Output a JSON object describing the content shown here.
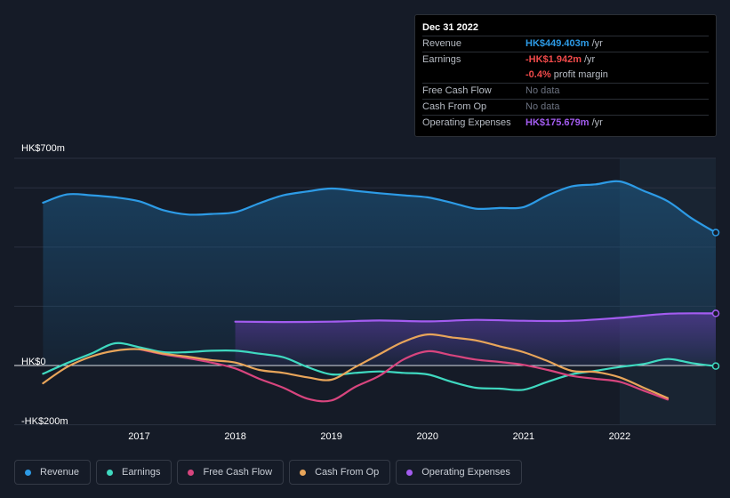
{
  "tooltip": {
    "date": "Dec 31 2022",
    "rows": [
      {
        "label": "Revenue",
        "value": "HK$449.403m",
        "suffix": "/yr"
      },
      {
        "label": "Earnings",
        "value": "-HK$1.942m",
        "suffix": "/yr"
      },
      {
        "label": "",
        "value": "-0.4%",
        "suffix": "profit margin"
      },
      {
        "label": "Free Cash Flow",
        "value": "No data",
        "suffix": ""
      },
      {
        "label": "Cash From Op",
        "value": "No data",
        "suffix": ""
      },
      {
        "label": "Operating Expenses",
        "value": "HK$175.679m",
        "suffix": "/yr"
      }
    ]
  },
  "legend": [
    {
      "label": "Revenue",
      "color": "#2d9be6"
    },
    {
      "label": "Earnings",
      "color": "#3fd9c0"
    },
    {
      "label": "Free Cash Flow",
      "color": "#d8457e"
    },
    {
      "label": "Cash From Op",
      "color": "#e8a55a"
    },
    {
      "label": "Operating Expenses",
      "color": "#a35cf0"
    }
  ],
  "chart_data": {
    "type": "line",
    "y_labels": [
      "HK$700m",
      "HK$0",
      "-HK$200m"
    ],
    "x_ticks": [
      {
        "label": "2017",
        "x": 2017.0
      },
      {
        "label": "2018",
        "x": 2018.0
      },
      {
        "label": "2019",
        "x": 2019.0
      },
      {
        "label": "2020",
        "x": 2020.0
      },
      {
        "label": "2021",
        "x": 2021.0
      },
      {
        "label": "2022",
        "x": 2022.0
      }
    ],
    "xlim": [
      2015.7,
      2023.0
    ],
    "ylim": [
      -200,
      700
    ],
    "forecast_start": 2022.0,
    "series": [
      {
        "name": "Revenue",
        "color": "#2d9be6",
        "fill": true,
        "x": [
          2016.0,
          2016.25,
          2016.5,
          2016.75,
          2017.0,
          2017.25,
          2017.5,
          2017.75,
          2018.0,
          2018.25,
          2018.5,
          2018.75,
          2019.0,
          2019.25,
          2019.5,
          2019.75,
          2020.0,
          2020.25,
          2020.5,
          2020.75,
          2021.0,
          2021.25,
          2021.5,
          2021.75,
          2022.0,
          2022.25,
          2022.5,
          2022.75,
          2023.0
        ],
        "values": [
          550,
          578,
          575,
          568,
          555,
          525,
          510,
          512,
          518,
          548,
          575,
          588,
          598,
          590,
          582,
          575,
          568,
          550,
          530,
          532,
          535,
          575,
          605,
          612,
          622,
          590,
          555,
          497,
          449
        ]
      },
      {
        "name": "Operating Expenses",
        "color": "#a35cf0",
        "fill": true,
        "x": [
          2018.0,
          2018.5,
          2019.0,
          2019.5,
          2020.0,
          2020.5,
          2021.0,
          2021.5,
          2022.0,
          2022.5,
          2023.0
        ],
        "values": [
          148,
          147,
          148,
          152,
          149,
          154,
          151,
          151,
          161,
          175,
          176
        ]
      },
      {
        "name": "Earnings",
        "color": "#3fd9c0",
        "fill": false,
        "x": [
          2016.0,
          2016.25,
          2016.5,
          2016.75,
          2017.0,
          2017.25,
          2017.5,
          2017.75,
          2018.0,
          2018.25,
          2018.5,
          2018.75,
          2019.0,
          2019.25,
          2019.5,
          2019.75,
          2020.0,
          2020.25,
          2020.5,
          2020.75,
          2021.0,
          2021.25,
          2021.5,
          2021.75,
          2022.0,
          2022.25,
          2022.5,
          2022.75,
          2023.0
        ],
        "values": [
          -28,
          8,
          40,
          75,
          62,
          45,
          45,
          50,
          50,
          40,
          28,
          -5,
          -30,
          -25,
          -20,
          -25,
          -30,
          -55,
          -75,
          -78,
          -82,
          -55,
          -30,
          -18,
          -5,
          5,
          22,
          8,
          -2
        ]
      },
      {
        "name": "Free Cash Flow",
        "color": "#d8457e",
        "fill": false,
        "x": [
          2017.0,
          2017.25,
          2017.5,
          2017.75,
          2018.0,
          2018.25,
          2018.5,
          2018.75,
          2019.0,
          2019.25,
          2019.5,
          2019.75,
          2020.0,
          2020.25,
          2020.5,
          2020.75,
          2021.0,
          2021.25,
          2021.5,
          2021.75,
          2022.0,
          2022.25,
          2022.5
        ],
        "values": [
          55,
          38,
          25,
          10,
          -10,
          -45,
          -75,
          -112,
          -118,
          -72,
          -35,
          20,
          48,
          35,
          20,
          12,
          2,
          -15,
          -35,
          -45,
          -55,
          -85,
          -115
        ]
      },
      {
        "name": "Cash From Op",
        "color": "#e8a55a",
        "fill": false,
        "x": [
          2016.0,
          2016.25,
          2016.5,
          2016.75,
          2017.0,
          2017.25,
          2017.5,
          2017.75,
          2018.0,
          2018.25,
          2018.5,
          2018.75,
          2019.0,
          2019.25,
          2019.5,
          2019.75,
          2020.0,
          2020.25,
          2020.5,
          2020.75,
          2021.0,
          2021.25,
          2021.5,
          2021.75,
          2022.0,
          2022.25,
          2022.5
        ],
        "values": [
          -60,
          -5,
          30,
          50,
          55,
          40,
          30,
          18,
          10,
          -15,
          -25,
          -40,
          -48,
          -5,
          38,
          80,
          105,
          95,
          85,
          65,
          45,
          15,
          -18,
          -22,
          -40,
          -75,
          -110
        ]
      }
    ]
  }
}
